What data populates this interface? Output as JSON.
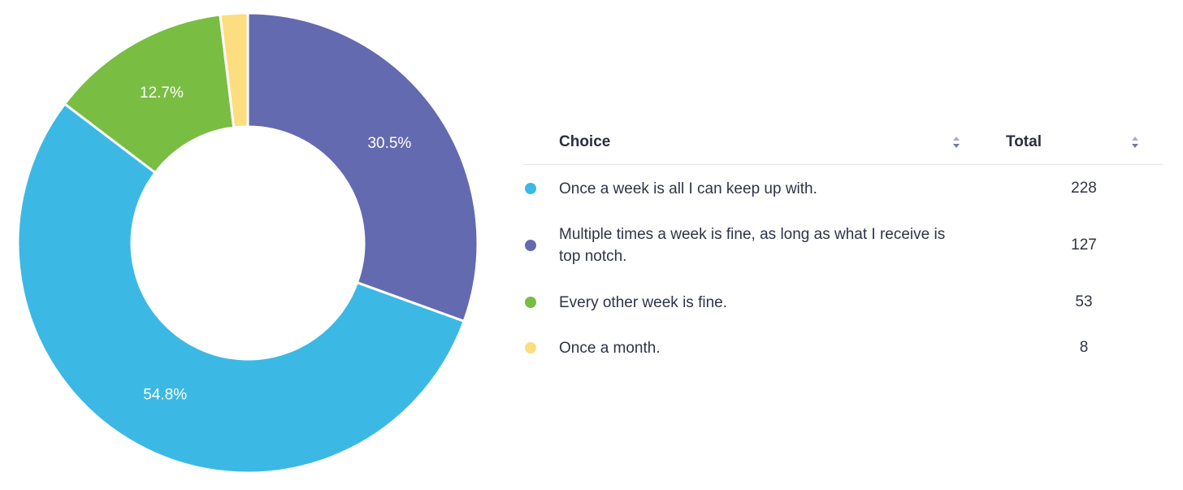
{
  "chart_data": {
    "type": "pie",
    "subtype": "donut",
    "slices": [
      {
        "label": "Once a week is all I can keep up with.",
        "value": 228,
        "percent_label": "54.8%",
        "color": "#3bb9e4"
      },
      {
        "label": "Multiple times a week is fine, as long as what I receive is top notch.",
        "value": 127,
        "percent_label": "30.5%",
        "color": "#646ab0"
      },
      {
        "label": "Every other week is fine.",
        "value": 53,
        "percent_label": "12.7%",
        "color": "#79bd42"
      },
      {
        "label": "Once a month.",
        "value": 8,
        "percent_label": "",
        "color": "#fcdd7f"
      }
    ],
    "start_angle": "12 o'clock",
    "direction": "clockwise-from-top, drawn counter-order (largest wraps left)",
    "legend": "table-right"
  },
  "table": {
    "headers": {
      "choice": "Choice",
      "total": "Total"
    },
    "rows": [
      {
        "choice": "Once a week is all I can keep up with.",
        "total": "228",
        "color": "#3bb9e4"
      },
      {
        "choice": "Multiple times a week is fine, as long as what I receive is top notch.",
        "total": "127",
        "color": "#646ab0"
      },
      {
        "choice": "Every other week is fine.",
        "total": "53",
        "color": "#79bd42"
      },
      {
        "choice": "Once a month.",
        "total": "8",
        "color": "#fcdd7f"
      }
    ],
    "sort_icon": "sort-arrows-icon"
  }
}
